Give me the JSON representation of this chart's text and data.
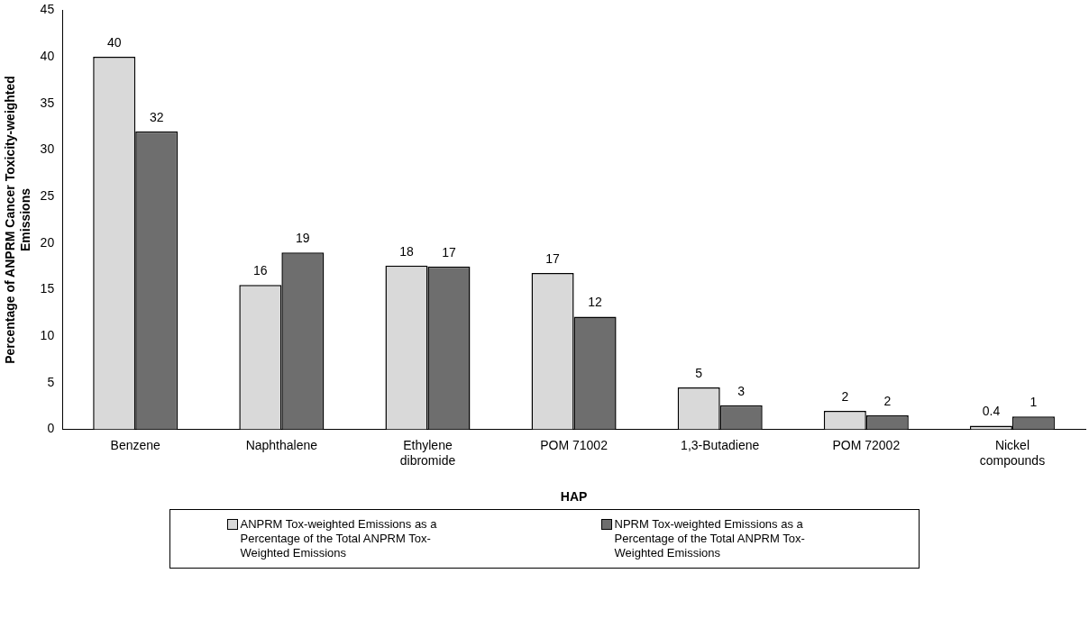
{
  "chart_data": {
    "type": "bar",
    "xlabel": "HAP",
    "ylabel": "Percentage of ANPRM Cancer Toxicity-weighted Emissions",
    "categories": [
      "Benzene",
      "Naphthalene",
      "Ethylene dibromide",
      "POM 71002",
      "1,3-Butadiene",
      "POM 72002",
      "Nickel compounds"
    ],
    "series": [
      {
        "name": "ANPRM Tox-weighted Emissions as a Percentage of the Total ANPRM Tox-Weighted Emissions",
        "color": "#d9d9d9",
        "values": [
          40,
          15.5,
          17.6,
          16.8,
          4.5,
          2.0,
          0.4
        ],
        "value_labels": [
          "40",
          "16",
          "18",
          "17",
          "5",
          "2",
          "0.4"
        ]
      },
      {
        "name": "NPRM Tox-weighted Emissions as a Percentage of the Total ANPRM Tox-Weighted Emissions",
        "color": "#6e6e6e",
        "values": [
          32,
          19,
          17.5,
          12.1,
          2.6,
          1.5,
          1.4
        ],
        "value_labels": [
          "32",
          "19",
          "17",
          "12",
          "3",
          "2",
          "1"
        ]
      }
    ],
    "ylim": [
      0,
      45
    ],
    "yticks": [
      0,
      5,
      10,
      15,
      20,
      25,
      30,
      35,
      40,
      45
    ],
    "legend": "bottom"
  }
}
